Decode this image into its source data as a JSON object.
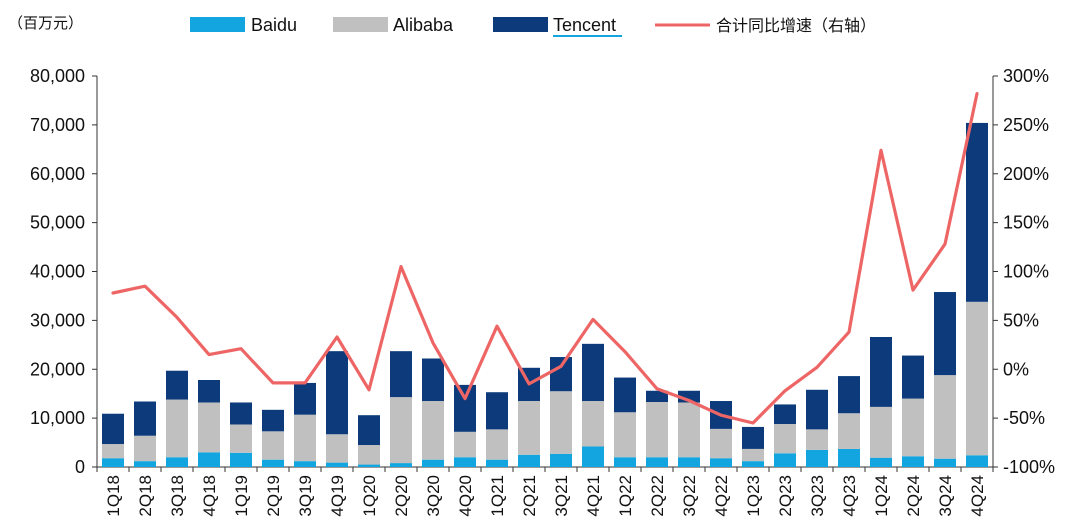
{
  "chart_data": {
    "type": "bar",
    "unit_label": "（百万元）",
    "categories": [
      "1Q18",
      "2Q18",
      "3Q18",
      "4Q18",
      "1Q19",
      "2Q19",
      "3Q19",
      "4Q19",
      "1Q20",
      "2Q20",
      "3Q20",
      "4Q20",
      "1Q21",
      "2Q21",
      "3Q21",
      "4Q21",
      "1Q22",
      "2Q22",
      "3Q22",
      "4Q22",
      "1Q23",
      "2Q23",
      "3Q23",
      "4Q23",
      "1Q24",
      "2Q24",
      "3Q24",
      "4Q24"
    ],
    "series": [
      {
        "name": "Baidu",
        "kind": "bar",
        "axis": "left",
        "color": "#12a5df",
        "values": [
          1800,
          1200,
          2000,
          3000,
          2900,
          1500,
          1200,
          900,
          500,
          800,
          1500,
          2000,
          1500,
          2500,
          2700,
          4200,
          2000,
          2000,
          2000,
          1800,
          1200,
          2800,
          3500,
          3700,
          1900,
          2200,
          1700,
          2400
        ]
      },
      {
        "name": "Alibaba",
        "kind": "bar",
        "axis": "left",
        "color": "#c0c0c0",
        "values": [
          2900,
          5200,
          11800,
          10200,
          5800,
          5800,
          9500,
          5800,
          4000,
          13500,
          12000,
          5200,
          6200,
          11000,
          12800,
          9300,
          9200,
          11300,
          11200,
          6000,
          2500,
          6000,
          4200,
          7300,
          10400,
          11800,
          17100,
          31400
        ]
      },
      {
        "name": "Tencent",
        "kind": "bar",
        "axis": "left",
        "color": "#0c3a7a",
        "values": [
          6200,
          7000,
          5900,
          4600,
          4500,
          4400,
          6500,
          17000,
          6100,
          9400,
          8700,
          9600,
          7600,
          6800,
          7000,
          11700,
          7100,
          2300,
          2400,
          5700,
          4500,
          4000,
          8100,
          7600,
          14300,
          8800,
          17000,
          36600
        ]
      },
      {
        "name": "合计同比增速（右轴）",
        "kind": "line",
        "axis": "right",
        "color": "#ee6565",
        "values": [
          78,
          85,
          53,
          15,
          21,
          -14,
          -14,
          33,
          -21,
          105,
          27,
          -30,
          44,
          -15,
          3,
          51,
          18,
          -20,
          -32,
          -47,
          -55,
          -22,
          2,
          38,
          224,
          81,
          128,
          282
        ]
      }
    ],
    "y_left": {
      "min": 0,
      "max": 80000,
      "ticks": [
        "0",
        "10,000",
        "20,000",
        "30,000",
        "40,000",
        "50,000",
        "60,000",
        "70,000",
        "80,000"
      ]
    },
    "y_right": {
      "min": -100,
      "max": 300,
      "ticks": [
        "-100%",
        "-50%",
        "0%",
        "50%",
        "100%",
        "150%",
        "200%",
        "250%",
        "300%"
      ]
    },
    "legend_position": "top",
    "grid": false
  }
}
